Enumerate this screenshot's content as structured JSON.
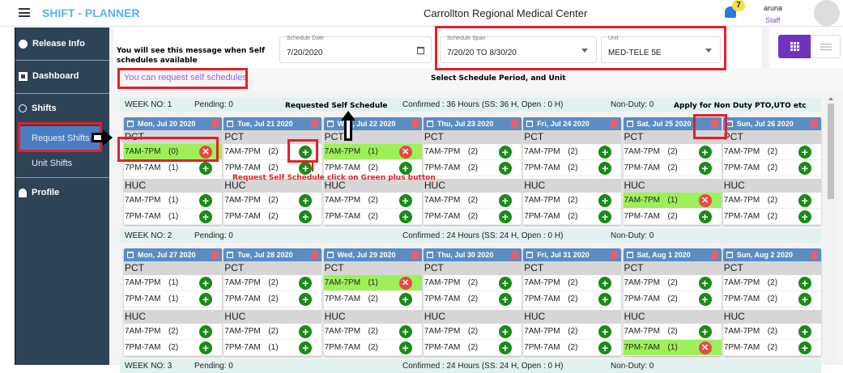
{
  "header": {
    "app_title": "SHIFT - PLANNER",
    "facility": "Carrollton Regional Medical Center",
    "notification_count": "7",
    "user_name": "aruna",
    "user_role": "Staff"
  },
  "colors": {
    "sidebar": "#2f4356",
    "accent": "#6f33c0",
    "day_header": "#5b8cc4",
    "booked": "#9ef05a",
    "add": "#1a8a18",
    "cancel": "#e84848",
    "annotation": "#e4202a"
  },
  "sidebar": {
    "items": [
      {
        "label": "Release Info",
        "icon": "alert-icon"
      },
      {
        "label": "Dashboard",
        "icon": "dashboard-icon"
      },
      {
        "label": "Shifts",
        "icon": "timer-icon"
      },
      {
        "label": "Request Shifts",
        "active": true
      },
      {
        "label": "Unit Shifts"
      },
      {
        "label": "Profile",
        "icon": "person-icon"
      }
    ]
  },
  "filters": {
    "schedule_date_label": "Schedule Date",
    "schedule_date": "7/20/2020",
    "span_label": "Schedule Span",
    "span": "7/20/20 TO 8/30/20",
    "unit_label": "Unit",
    "unit": "MED-TELE 5E"
  },
  "message": "You can request self schedules",
  "annotations": {
    "self_msg": "You will see this message when Self schedules available",
    "period": "Select Schedule Period,  and Unit",
    "requested": "Requested Self Schedule",
    "non_duty": "Apply for  Non Duty PTO,UTO etc",
    "plus_hint": "Request Self Schedule  click on Green plus button"
  },
  "weeks": [
    {
      "week": "WEEK NO: 1",
      "pending": "Pending: 0",
      "confirmed": "Confirmed : 36 Hours (SS: 36 H, Open : 0 H)",
      "non_duty": "Non-Duty: 0",
      "days": [
        {
          "date": "Mon, Jul 20 2020",
          "pct": [
            [
              "7AM-7PM",
              "(0)",
              true
            ],
            [
              "7PM-7AM",
              "(1)",
              false
            ]
          ],
          "huc": [
            [
              "7AM-7PM",
              "(1)",
              false
            ],
            [
              "7PM-7AM",
              "(1)",
              false
            ]
          ]
        },
        {
          "date": "Tue, Jul 21 2020",
          "pct": [
            [
              "7AM-7PM",
              "(2)",
              false
            ],
            [
              "7PM-7AM",
              "(2)",
              false
            ]
          ],
          "huc": [
            [
              "7AM-7PM",
              "(2)",
              false
            ],
            [
              "7PM-7AM",
              "(2)",
              false
            ]
          ]
        },
        {
          "date": "Wed, Jul 22 2020",
          "pct": [
            [
              "7AM-7PM",
              "(1)",
              true
            ],
            [
              "7PM-7AM",
              "(2)",
              false
            ]
          ],
          "huc": [
            [
              "7AM-7PM",
              "(2)",
              false
            ],
            [
              "7PM-7AM",
              "(2)",
              false
            ]
          ]
        },
        {
          "date": "Thu, Jul 23 2020",
          "pct": [
            [
              "7AM-7PM",
              "(2)",
              false
            ],
            [
              "7PM-7AM",
              "(2)",
              false
            ]
          ],
          "huc": [
            [
              "7AM-7PM",
              "(2)",
              false
            ],
            [
              "7PM-7AM",
              "(2)",
              false
            ]
          ]
        },
        {
          "date": "Fri, Jul 24 2020",
          "pct": [
            [
              "7AM-7PM",
              "(2)",
              false
            ],
            [
              "7PM-7AM",
              "(2)",
              false
            ]
          ],
          "huc": [
            [
              "7AM-7PM",
              "(2)",
              false
            ],
            [
              "7PM-7AM",
              "(2)",
              false
            ]
          ]
        },
        {
          "date": "Sat, Jul 25 2020",
          "pct": [
            [
              "7AM-7PM",
              "(2)",
              false
            ],
            [
              "7PM-7AM",
              "(2)",
              false
            ]
          ],
          "huc": [
            [
              "7AM-7PM",
              "(1)",
              true
            ],
            [
              "7PM-7AM",
              "(2)",
              false
            ]
          ]
        },
        {
          "date": "Sun, Jul 26 2020",
          "pct": [
            [
              "7AM-7PM",
              "(2)",
              false
            ],
            [
              "7PM-7AM",
              "(2)",
              false
            ]
          ],
          "huc": [
            [
              "7AM-7PM",
              "(2)",
              false
            ],
            [
              "7PM-7AM",
              "(2)",
              false
            ]
          ]
        }
      ]
    },
    {
      "week": "WEEK NO: 2",
      "pending": "Pending: 0",
      "confirmed": "Confirmed : 24 Hours (SS: 24 H, Open : 0 H)",
      "non_duty": "Non-Duty: 0",
      "days": [
        {
          "date": "Mon, Jul 27 2020",
          "pct": [
            [
              "7AM-7PM",
              "(1)",
              false
            ],
            [
              "7PM-7AM",
              "(1)",
              false
            ]
          ],
          "huc": [
            [
              "7AM-7PM",
              "(2)",
              false
            ],
            [
              "7PM-7AM",
              "(2)",
              false
            ]
          ]
        },
        {
          "date": "Tue, Jul 28 2020",
          "pct": [
            [
              "7AM-7PM",
              "(2)",
              false
            ],
            [
              "7PM-7AM",
              "(2)",
              false
            ]
          ],
          "huc": [
            [
              "7AM-7PM",
              "(2)",
              false
            ],
            [
              "7PM-7AM",
              "(1)",
              false
            ]
          ]
        },
        {
          "date": "Wed, Jul 29 2020",
          "pct": [
            [
              "7AM-7PM",
              "(1)",
              true
            ],
            [
              "7PM-7AM",
              "(2)",
              false
            ]
          ],
          "huc": [
            [
              "7AM-7PM",
              "(2)",
              false
            ],
            [
              "7PM-7AM",
              "(2)",
              false
            ]
          ]
        },
        {
          "date": "Thu, Jul 30 2020",
          "pct": [
            [
              "7AM-7PM",
              "(2)",
              false
            ],
            [
              "7PM-7AM",
              "(2)",
              false
            ]
          ],
          "huc": [
            [
              "7AM-7PM",
              "(2)",
              false
            ],
            [
              "7PM-7AM",
              "(2)",
              false
            ]
          ]
        },
        {
          "date": "Fri, Jul 31 2020",
          "pct": [
            [
              "7AM-7PM",
              "(2)",
              false
            ],
            [
              "7PM-7AM",
              "(2)",
              false
            ]
          ],
          "huc": [
            [
              "7AM-7PM",
              "(2)",
              false
            ],
            [
              "7PM-7AM",
              "(2)",
              false
            ]
          ]
        },
        {
          "date": "Sat, Aug 1 2020",
          "pct": [
            [
              "7AM-7PM",
              "(2)",
              false
            ],
            [
              "7PM-7AM",
              "(2)",
              false
            ]
          ],
          "huc": [
            [
              "7AM-7PM",
              "(2)",
              false
            ],
            [
              "7PM-7AM",
              "(1)",
              true
            ]
          ]
        },
        {
          "date": "Sun, Aug 2 2020",
          "pct": [
            [
              "7AM-7PM",
              "(2)",
              false
            ],
            [
              "7PM-7AM",
              "(2)",
              false
            ]
          ],
          "huc": [
            [
              "7AM-7PM",
              "(2)",
              false
            ],
            [
              "7PM-7AM",
              "(2)",
              false
            ]
          ]
        }
      ]
    },
    {
      "week": "WEEK NO: 3",
      "pending": "Pending: 0",
      "confirmed": "Confirmed : 24 Hours (SS: 24 H, Open : 0 H)",
      "non_duty": "Non-Duty: 0",
      "days": []
    }
  ],
  "roles": [
    "PCT",
    "HUC"
  ]
}
